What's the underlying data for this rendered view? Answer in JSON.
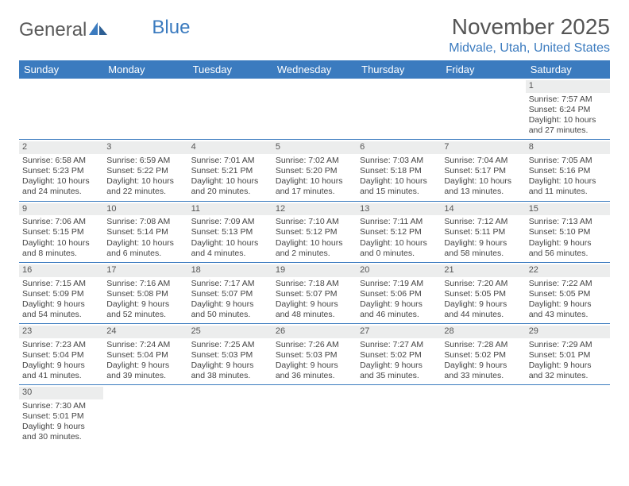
{
  "logo": {
    "text1": "General",
    "text2": "Blue"
  },
  "title": "November 2025",
  "location": "Midvale, Utah, United States",
  "colors": {
    "header_bg": "#3b7bbf",
    "header_text": "#ffffff",
    "daynum_bg": "#eceded",
    "row_border": "#3b7bbf",
    "title_color": "#555555",
    "location_color": "#3b7bbf"
  },
  "day_headers": [
    "Sunday",
    "Monday",
    "Tuesday",
    "Wednesday",
    "Thursday",
    "Friday",
    "Saturday"
  ],
  "weeks": [
    [
      null,
      null,
      null,
      null,
      null,
      null,
      {
        "n": "1",
        "sunrise": "Sunrise: 7:57 AM",
        "sunset": "Sunset: 6:24 PM",
        "day1": "Daylight: 10 hours",
        "day2": "and 27 minutes."
      }
    ],
    [
      {
        "n": "2",
        "sunrise": "Sunrise: 6:58 AM",
        "sunset": "Sunset: 5:23 PM",
        "day1": "Daylight: 10 hours",
        "day2": "and 24 minutes."
      },
      {
        "n": "3",
        "sunrise": "Sunrise: 6:59 AM",
        "sunset": "Sunset: 5:22 PM",
        "day1": "Daylight: 10 hours",
        "day2": "and 22 minutes."
      },
      {
        "n": "4",
        "sunrise": "Sunrise: 7:01 AM",
        "sunset": "Sunset: 5:21 PM",
        "day1": "Daylight: 10 hours",
        "day2": "and 20 minutes."
      },
      {
        "n": "5",
        "sunrise": "Sunrise: 7:02 AM",
        "sunset": "Sunset: 5:20 PM",
        "day1": "Daylight: 10 hours",
        "day2": "and 17 minutes."
      },
      {
        "n": "6",
        "sunrise": "Sunrise: 7:03 AM",
        "sunset": "Sunset: 5:18 PM",
        "day1": "Daylight: 10 hours",
        "day2": "and 15 minutes."
      },
      {
        "n": "7",
        "sunrise": "Sunrise: 7:04 AM",
        "sunset": "Sunset: 5:17 PM",
        "day1": "Daylight: 10 hours",
        "day2": "and 13 minutes."
      },
      {
        "n": "8",
        "sunrise": "Sunrise: 7:05 AM",
        "sunset": "Sunset: 5:16 PM",
        "day1": "Daylight: 10 hours",
        "day2": "and 11 minutes."
      }
    ],
    [
      {
        "n": "9",
        "sunrise": "Sunrise: 7:06 AM",
        "sunset": "Sunset: 5:15 PM",
        "day1": "Daylight: 10 hours",
        "day2": "and 8 minutes."
      },
      {
        "n": "10",
        "sunrise": "Sunrise: 7:08 AM",
        "sunset": "Sunset: 5:14 PM",
        "day1": "Daylight: 10 hours",
        "day2": "and 6 minutes."
      },
      {
        "n": "11",
        "sunrise": "Sunrise: 7:09 AM",
        "sunset": "Sunset: 5:13 PM",
        "day1": "Daylight: 10 hours",
        "day2": "and 4 minutes."
      },
      {
        "n": "12",
        "sunrise": "Sunrise: 7:10 AM",
        "sunset": "Sunset: 5:12 PM",
        "day1": "Daylight: 10 hours",
        "day2": "and 2 minutes."
      },
      {
        "n": "13",
        "sunrise": "Sunrise: 7:11 AM",
        "sunset": "Sunset: 5:12 PM",
        "day1": "Daylight: 10 hours",
        "day2": "and 0 minutes."
      },
      {
        "n": "14",
        "sunrise": "Sunrise: 7:12 AM",
        "sunset": "Sunset: 5:11 PM",
        "day1": "Daylight: 9 hours",
        "day2": "and 58 minutes."
      },
      {
        "n": "15",
        "sunrise": "Sunrise: 7:13 AM",
        "sunset": "Sunset: 5:10 PM",
        "day1": "Daylight: 9 hours",
        "day2": "and 56 minutes."
      }
    ],
    [
      {
        "n": "16",
        "sunrise": "Sunrise: 7:15 AM",
        "sunset": "Sunset: 5:09 PM",
        "day1": "Daylight: 9 hours",
        "day2": "and 54 minutes."
      },
      {
        "n": "17",
        "sunrise": "Sunrise: 7:16 AM",
        "sunset": "Sunset: 5:08 PM",
        "day1": "Daylight: 9 hours",
        "day2": "and 52 minutes."
      },
      {
        "n": "18",
        "sunrise": "Sunrise: 7:17 AM",
        "sunset": "Sunset: 5:07 PM",
        "day1": "Daylight: 9 hours",
        "day2": "and 50 minutes."
      },
      {
        "n": "19",
        "sunrise": "Sunrise: 7:18 AM",
        "sunset": "Sunset: 5:07 PM",
        "day1": "Daylight: 9 hours",
        "day2": "and 48 minutes."
      },
      {
        "n": "20",
        "sunrise": "Sunrise: 7:19 AM",
        "sunset": "Sunset: 5:06 PM",
        "day1": "Daylight: 9 hours",
        "day2": "and 46 minutes."
      },
      {
        "n": "21",
        "sunrise": "Sunrise: 7:20 AM",
        "sunset": "Sunset: 5:05 PM",
        "day1": "Daylight: 9 hours",
        "day2": "and 44 minutes."
      },
      {
        "n": "22",
        "sunrise": "Sunrise: 7:22 AM",
        "sunset": "Sunset: 5:05 PM",
        "day1": "Daylight: 9 hours",
        "day2": "and 43 minutes."
      }
    ],
    [
      {
        "n": "23",
        "sunrise": "Sunrise: 7:23 AM",
        "sunset": "Sunset: 5:04 PM",
        "day1": "Daylight: 9 hours",
        "day2": "and 41 minutes."
      },
      {
        "n": "24",
        "sunrise": "Sunrise: 7:24 AM",
        "sunset": "Sunset: 5:04 PM",
        "day1": "Daylight: 9 hours",
        "day2": "and 39 minutes."
      },
      {
        "n": "25",
        "sunrise": "Sunrise: 7:25 AM",
        "sunset": "Sunset: 5:03 PM",
        "day1": "Daylight: 9 hours",
        "day2": "and 38 minutes."
      },
      {
        "n": "26",
        "sunrise": "Sunrise: 7:26 AM",
        "sunset": "Sunset: 5:03 PM",
        "day1": "Daylight: 9 hours",
        "day2": "and 36 minutes."
      },
      {
        "n": "27",
        "sunrise": "Sunrise: 7:27 AM",
        "sunset": "Sunset: 5:02 PM",
        "day1": "Daylight: 9 hours",
        "day2": "and 35 minutes."
      },
      {
        "n": "28",
        "sunrise": "Sunrise: 7:28 AM",
        "sunset": "Sunset: 5:02 PM",
        "day1": "Daylight: 9 hours",
        "day2": "and 33 minutes."
      },
      {
        "n": "29",
        "sunrise": "Sunrise: 7:29 AM",
        "sunset": "Sunset: 5:01 PM",
        "day1": "Daylight: 9 hours",
        "day2": "and 32 minutes."
      }
    ],
    [
      {
        "n": "30",
        "sunrise": "Sunrise: 7:30 AM",
        "sunset": "Sunset: 5:01 PM",
        "day1": "Daylight: 9 hours",
        "day2": "and 30 minutes."
      },
      null,
      null,
      null,
      null,
      null,
      null
    ]
  ]
}
